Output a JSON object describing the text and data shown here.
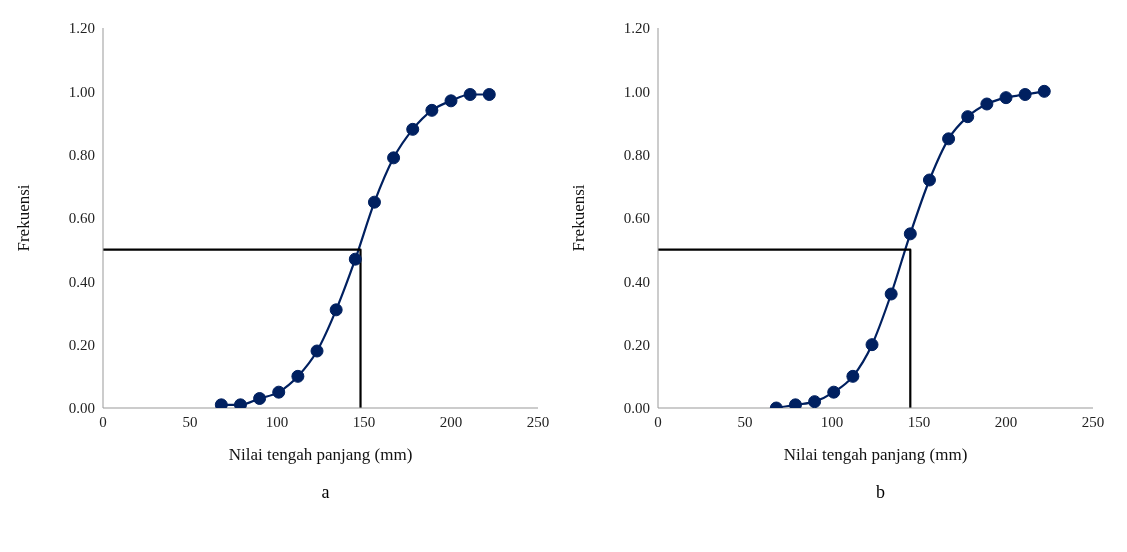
{
  "chart_data": [
    {
      "type": "line",
      "xlabel": "Nilai tengah panjang (mm)",
      "ylabel": "Frekuensi",
      "xlim": [
        0,
        250
      ],
      "xticks": [
        0,
        50,
        100,
        150,
        200,
        250
      ],
      "ylim": [
        0,
        1.2
      ],
      "yticks": [
        {
          "value": 0,
          "label": "0.00"
        },
        {
          "value": 0.2,
          "label": "0.20"
        },
        {
          "value": 0.4,
          "label": "0.40"
        },
        {
          "value": 0.6,
          "label": "0.60"
        },
        {
          "value": 0.8,
          "label": "0.80"
        },
        {
          "value": 1,
          "label": "1.00"
        },
        {
          "value": 1.2,
          "label": "1.20"
        }
      ],
      "marker": "circle",
      "grid": false,
      "legend": false,
      "annotations": [
        "a"
      ],
      "series": [
        {
          "color": "#002060",
          "x": [
            68,
            79,
            90,
            101,
            112,
            123,
            134,
            145,
            156,
            167,
            178,
            189,
            200,
            211,
            222
          ],
          "values": [
            0.01,
            0.01,
            0.03,
            0.05,
            0.1,
            0.18,
            0.31,
            0.47,
            0.65,
            0.79,
            0.88,
            0.94,
            0.97,
            0.99,
            0.99
          ]
        },
        {
          "color": "#000000",
          "marker": "none",
          "x": [
            0,
            148,
            148
          ],
          "values": [
            0.5,
            0.5,
            0
          ]
        }
      ]
    },
    {
      "type": "line",
      "xlabel": "Nilai tengah panjang (mm)",
      "ylabel": "Frekuensi",
      "xlim": [
        0,
        250
      ],
      "xticks": [
        0,
        50,
        100,
        150,
        200,
        250
      ],
      "ylim": [
        0,
        1.2
      ],
      "yticks": [
        {
          "value": 0,
          "label": "0.00"
        },
        {
          "value": 0.2,
          "label": "0.20"
        },
        {
          "value": 0.4,
          "label": "0.40"
        },
        {
          "value": 0.6,
          "label": "0.60"
        },
        {
          "value": 0.8,
          "label": "0.80"
        },
        {
          "value": 1,
          "label": "1.00"
        },
        {
          "value": 1.2,
          "label": "1.20"
        }
      ],
      "marker": "circle",
      "grid": false,
      "legend": false,
      "annotations": [
        "b"
      ],
      "series": [
        {
          "color": "#002060",
          "x": [
            68,
            79,
            90,
            101,
            112,
            123,
            134,
            145,
            156,
            167,
            178,
            189,
            200,
            211,
            222
          ],
          "values": [
            0,
            0.01,
            0.02,
            0.05,
            0.1,
            0.2,
            0.36,
            0.55,
            0.72,
            0.85,
            0.92,
            0.96,
            0.98,
            0.99,
            1
          ]
        },
        {
          "color": "#000000",
          "marker": "none",
          "x": [
            0,
            145,
            145
          ],
          "values": [
            0.5,
            0.5,
            0
          ]
        }
      ]
    }
  ]
}
